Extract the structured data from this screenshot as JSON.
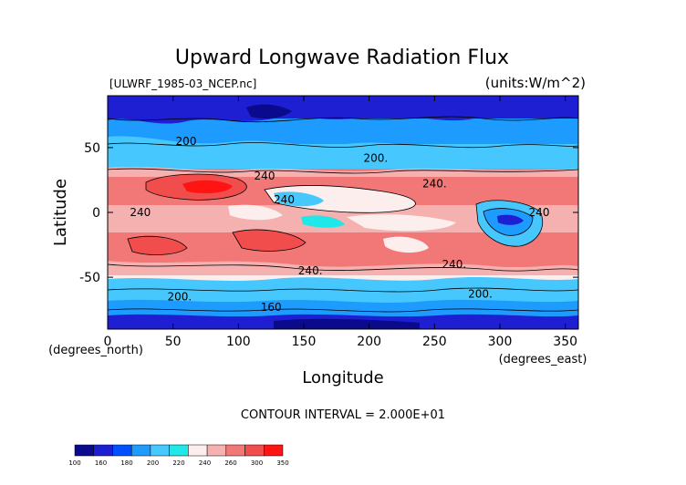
{
  "chart_data": {
    "type": "heatmap",
    "title": "Upward Longwave Radiation Flux",
    "subtitle_left": "[ULWRF_1985-03_NCEP.nc]",
    "subtitle_right": "(units:W/m^2)",
    "xlabel": "Longitude",
    "ylabel": "Latitude",
    "x_unit_note": "(degrees_east)",
    "y_unit_note": "(degrees_north)",
    "xlim": [
      0,
      360
    ],
    "ylim": [
      -90,
      90
    ],
    "x_ticks": [
      0,
      50,
      100,
      150,
      200,
      250,
      300,
      350
    ],
    "y_ticks": [
      50,
      0,
      -50
    ],
    "contour_interval_text": "CONTOUR INTERVAL = 2.000E+01",
    "contour_labels": [
      {
        "text": "200",
        "lon": 60,
        "lat": 55
      },
      {
        "text": "200.",
        "lon": 205,
        "lat": 42
      },
      {
        "text": "240",
        "lon": 120,
        "lat": 28
      },
      {
        "text": "240.",
        "lon": 250,
        "lat": 22
      },
      {
        "text": "240",
        "lon": 135,
        "lat": 10
      },
      {
        "text": "240",
        "lon": 25,
        "lat": 0
      },
      {
        "text": "240",
        "lon": 330,
        "lat": 0
      },
      {
        "text": "240.",
        "lon": 155,
        "lat": -45
      },
      {
        "text": "240.",
        "lon": 265,
        "lat": -40
      },
      {
        "text": "200.",
        "lon": 55,
        "lat": -65
      },
      {
        "text": "200.",
        "lon": 285,
        "lat": -63
      },
      {
        "text": "160",
        "lon": 125,
        "lat": -73
      }
    ],
    "legend": {
      "levels": [
        "100",
        "160",
        "180",
        "200",
        "220",
        "240",
        "260",
        "300",
        "350"
      ],
      "colors": [
        "#0a0a8c",
        "#1e1ed2",
        "#0050ff",
        "#1e9bff",
        "#46c8ff",
        "#20e8e8",
        "#fdeeee",
        "#f5b0b0",
        "#f27878",
        "#f24d4d",
        "#ff1414"
      ]
    },
    "regions": [
      {
        "band": "north-polar",
        "lat": [
          75,
          90
        ],
        "value": 170
      },
      {
        "band": "north-high",
        "lat": [
          55,
          75
        ],
        "value": 195
      },
      {
        "band": "north-mid",
        "lat": [
          35,
          55
        ],
        "value": 215
      },
      {
        "band": "north-subtropics",
        "lat": [
          10,
          35
        ],
        "value": 265
      },
      {
        "band": "tropics",
        "lat": [
          -10,
          10
        ],
        "value": 250
      },
      {
        "band": "south-subtropics",
        "lat": [
          -35,
          -10
        ],
        "value": 265
      },
      {
        "band": "south-mid",
        "lat": [
          -52,
          -35
        ],
        "value": 245
      },
      {
        "band": "south-high",
        "lat": [
          -70,
          -52
        ],
        "value": 205
      },
      {
        "band": "south-polar",
        "lat": [
          -90,
          -70
        ],
        "value": 165
      }
    ]
  }
}
